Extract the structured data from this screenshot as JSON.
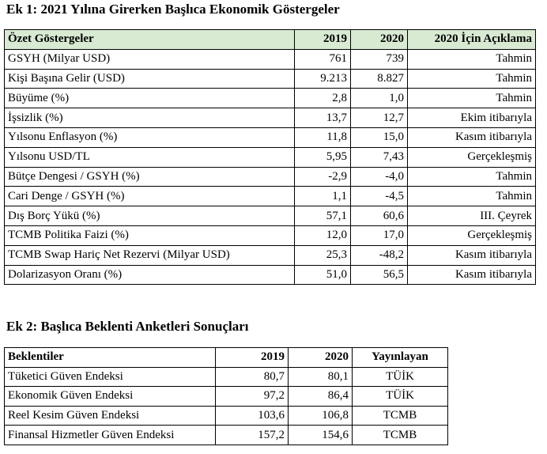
{
  "table1": {
    "title": "Ek 1: 2021 Yılına Girerken Başlıca Ekonomik Göstergeler",
    "headers": [
      "Özet Göstergeler",
      "2019",
      "2020",
      "2020 İçin Açıklama"
    ],
    "rows": [
      [
        "GSYH (Milyar USD)",
        "761",
        "739",
        "Tahmin"
      ],
      [
        "Kişi Başına Gelir (USD)",
        "9.213",
        "8.827",
        "Tahmin"
      ],
      [
        "Büyüme (%)",
        "2,8",
        "1,0",
        "Tahmin"
      ],
      [
        "İşsizlik (%)",
        "13,7",
        "12,7",
        "Ekim itibarıyla"
      ],
      [
        "Yılsonu Enflasyon (%)",
        "11,8",
        "15,0",
        "Kasım itibarıyla"
      ],
      [
        "Yılsonu USD/TL",
        "5,95",
        "7,43",
        "Gerçekleşmiş"
      ],
      [
        "Bütçe Dengesi / GSYH (%)",
        "-2,9",
        "-4,0",
        "Tahmin"
      ],
      [
        "Cari Denge / GSYH (%)",
        "1,1",
        "-4,5",
        "Tahmin"
      ],
      [
        "Dış Borç Yükü (%)",
        "57,1",
        "60,6",
        "III. Çeyrek"
      ],
      [
        "TCMB Politika Faizi (%)",
        "12,0",
        "17,0",
        "Gerçekleşmiş"
      ],
      [
        "TCMB Swap Hariç Net Rezervi (Milyar USD)",
        "25,3",
        "-48,2",
        "Kasım itibarıyla"
      ],
      [
        "Dolarizasyon Oranı (%)",
        "51,0",
        "56,5",
        "Kasım itibarıyla"
      ]
    ],
    "header_color": "#d9ead3"
  },
  "table2": {
    "title": "Ek 2: Başlıca Beklenti Anketleri Sonuçları",
    "headers": [
      "Beklentiler",
      "2019",
      "2020",
      "Yayınlayan"
    ],
    "rows": [
      [
        "Tüketici Güven Endeksi",
        "80,7",
        "80,1",
        "TÜİK"
      ],
      [
        "Ekonomik Güven Endeksi",
        "97,2",
        "86,4",
        "TÜİK"
      ],
      [
        "Reel Kesim Güven Endeksi",
        "103,6",
        "106,8",
        "TCMB"
      ],
      [
        "Finansal Hizmetler Güven Endeksi",
        "157,2",
        "154,6",
        "TCMB"
      ]
    ]
  }
}
